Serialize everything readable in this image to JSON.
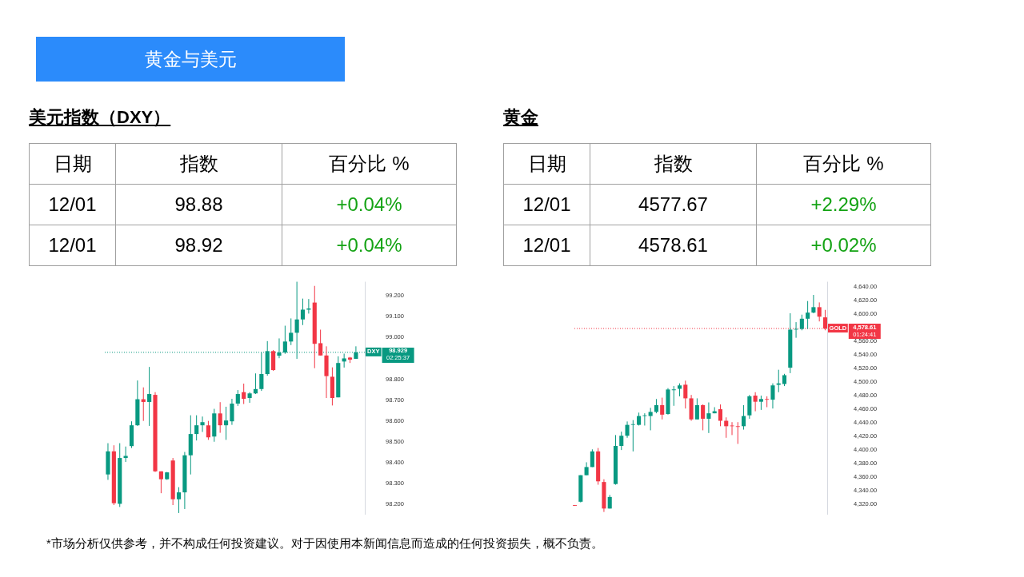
{
  "chart_data": [
    {
      "type": "other",
      "title": "黄金与美元",
      "color": "#2b8bfb",
      "annotations": [
        "*市场分析仅供参考，并不构成任何投资建议。对于因使用本新闻信息而造成的任何投资损失，概不负责。"
      ]
    },
    {
      "type": "other",
      "title": "美元指数（DXY）",
      "categories": [
        "日期",
        "指数",
        "百分比 %"
      ],
      "annotations": [
        "12/01",
        "98.88",
        "+0.04%",
        "12/01",
        "98.92",
        "+0.04%"
      ],
      "colors": [
        "#000000",
        "#000000",
        "#14a314",
        "#000000",
        "#000000",
        "#14a314"
      ]
    },
    {
      "type": "candlestick",
      "categories": [
        null,
        null,
        null,
        null,
        null,
        null,
        null,
        null,
        null,
        null,
        null,
        null,
        null,
        null,
        null,
        null,
        null,
        null,
        null,
        null,
        null,
        null,
        null,
        null,
        null,
        null,
        null,
        null,
        null,
        null,
        null,
        null,
        null,
        null,
        null,
        null,
        null,
        null,
        null,
        null,
        null,
        null,
        null
      ],
      "ohlc": [
        [
          98.343,
          98.493,
          98.317,
          98.454
        ],
        [
          98.454,
          98.483,
          98.196,
          98.205
        ],
        [
          98.202,
          98.493,
          98.187,
          98.422
        ],
        [
          98.422,
          98.477,
          98.403,
          98.432
        ],
        [
          98.479,
          98.598,
          98.47,
          98.579
        ],
        [
          98.579,
          98.794,
          98.576,
          98.704
        ],
        [
          98.704,
          98.761,
          98.6,
          98.691
        ],
        [
          98.691,
          98.859,
          98.576,
          98.729
        ],
        [
          98.725,
          98.738,
          98.355,
          98.358
        ],
        [
          98.358,
          98.358,
          98.253,
          98.32
        ],
        [
          98.32,
          98.355,
          98.317,
          98.353
        ],
        [
          98.41,
          98.422,
          98.196,
          98.224
        ],
        [
          98.224,
          98.282,
          98.158,
          98.257
        ],
        [
          98.257,
          98.451,
          98.177,
          98.435
        ],
        [
          98.435,
          98.627,
          98.343,
          98.537
        ],
        [
          98.537,
          98.627,
          98.506,
          98.579
        ],
        [
          98.579,
          98.621,
          98.547,
          98.594
        ],
        [
          98.579,
          98.6,
          98.509,
          98.521
        ],
        [
          98.525,
          98.658,
          98.5,
          98.636
        ],
        [
          98.636,
          98.69,
          98.543,
          98.579
        ],
        [
          98.579,
          98.668,
          98.509,
          98.602
        ],
        [
          98.598,
          98.706,
          98.581,
          98.683
        ],
        [
          98.683,
          98.748,
          98.672,
          98.729
        ],
        [
          98.738,
          98.779,
          98.681,
          98.706
        ],
        [
          98.71,
          98.738,
          98.687,
          98.732
        ],
        [
          98.732,
          98.828,
          98.729,
          98.753
        ],
        [
          98.753,
          98.929,
          98.744,
          98.825
        ],
        [
          98.825,
          98.983,
          98.817,
          98.935
        ],
        [
          98.935,
          98.94,
          98.84,
          98.844
        ],
        [
          98.913,
          98.996,
          98.901,
          98.928
        ],
        [
          98.928,
          99.057,
          98.922,
          98.981
        ],
        [
          98.981,
          99.092,
          98.964,
          99.023
        ],
        [
          99.023,
          99.268,
          98.898,
          99.087
        ],
        [
          99.087,
          99.187,
          99.06,
          99.134
        ],
        [
          99.134,
          99.185,
          99.115,
          99.14
        ],
        [
          99.168,
          99.248,
          98.853,
          98.97
        ],
        [
          98.973,
          99.038,
          98.914,
          98.914
        ],
        [
          98.914,
          98.958,
          98.71,
          98.815
        ],
        [
          98.812,
          98.857,
          98.674,
          98.71
        ],
        [
          98.713,
          98.91,
          98.713,
          98.878
        ],
        [
          98.885,
          98.923,
          98.856,
          98.9
        ],
        [
          98.904,
          98.907,
          98.878,
          98.894
        ],
        [
          98.898,
          98.958,
          98.898,
          98.929
        ]
      ],
      "colors": [
        "#089981",
        "#f23645",
        "#089981",
        "#089981",
        "#089981",
        "#089981",
        "#f23645",
        "#089981",
        "#f23645",
        "#f23645",
        "#089981",
        "#f23645",
        "#089981",
        "#089981",
        "#089981",
        "#089981",
        "#089981",
        "#f23645",
        "#089981",
        "#f23645",
        "#089981",
        "#089981",
        "#089981",
        "#f23645",
        "#089981",
        "#089981",
        "#089981",
        "#089981",
        "#f23645",
        "#089981",
        "#089981",
        "#089981",
        "#089981",
        "#089981",
        "#089981",
        "#f23645",
        "#f23645",
        "#f23645",
        "#f23645",
        "#089981",
        "#089981",
        "#f23645",
        "#089981"
      ],
      "ylim": [
        98.15,
        99.27
      ],
      "yticks": [
        {
          "value": 98.2,
          "label": "98.200"
        },
        {
          "value": 98.3,
          "label": "98.300"
        },
        {
          "value": 98.4,
          "label": "98.400"
        },
        {
          "value": 98.5,
          "label": "98.500"
        },
        {
          "value": 98.6,
          "label": "98.600"
        },
        {
          "value": 98.7,
          "label": "98.700"
        },
        {
          "value": 98.8,
          "label": "98.800"
        },
        {
          "value": 99.0,
          "label": "99.000"
        },
        {
          "value": 99.1,
          "label": "99.100"
        },
        {
          "value": 99.2,
          "label": "99.200"
        }
      ],
      "tick_labels": "y",
      "ref_lines": [
        {
          "axis": "y",
          "value": 98.929,
          "label": "DXY",
          "color": "#089981",
          "line_style": "dotted"
        }
      ],
      "annotations": [
        "98.929",
        "02:25:37"
      ]
    },
    {
      "type": "other",
      "title": "黄金",
      "categories": [
        "日期",
        "指数",
        "百分比 %"
      ],
      "annotations": [
        "12/01",
        "4577.67",
        "+2.29%",
        "12/01",
        "4578.61",
        "+0.02%"
      ],
      "colors": [
        "#000000",
        "#000000",
        "#14a314",
        "#000000",
        "#000000",
        "#14a314"
      ]
    },
    {
      "type": "candlestick",
      "categories": [
        null,
        null,
        null,
        null,
        null,
        null,
        null,
        null,
        null,
        null,
        null,
        null,
        null,
        null,
        null,
        null,
        null,
        null,
        null,
        null,
        null,
        null,
        null,
        null,
        null,
        null,
        null,
        null,
        null,
        null,
        null,
        null,
        null,
        null,
        null,
        null,
        null,
        null,
        null,
        null,
        null,
        null,
        null,
        null
      ],
      "ohlc": [
        [
          4319,
          4319,
          4318,
          4318
        ],
        [
          4324,
          4363,
          4323,
          4363
        ],
        [
          4363,
          4382,
          4363,
          4375
        ],
        [
          4375,
          4401,
          4375,
          4398
        ],
        [
          4398,
          4403,
          4349,
          4354
        ],
        [
          4353,
          4357,
          4309,
          4314
        ],
        [
          4314,
          4334,
          4314,
          4331
        ],
        [
          4350,
          4422,
          4349,
          4406
        ],
        [
          4406,
          4427,
          4400,
          4421
        ],
        [
          4421,
          4442,
          4418,
          4437
        ],
        [
          4437,
          4444,
          4398,
          4438
        ],
        [
          4437,
          4455,
          4436,
          4450
        ],
        [
          4450,
          4454,
          4436,
          4451
        ],
        [
          4450,
          4462,
          4429,
          4456
        ],
        [
          4456,
          4475,
          4454,
          4466
        ],
        [
          4466,
          4477,
          4445,
          4452
        ],
        [
          4453,
          4491,
          4452,
          4489
        ],
        [
          4488,
          4494,
          4465,
          4489
        ],
        [
          4490,
          4498,
          4479,
          4495
        ],
        [
          4496,
          4502,
          4461,
          4476
        ],
        [
          4476,
          4481,
          4443,
          4445
        ],
        [
          4445,
          4476,
          4445,
          4466
        ],
        [
          4466,
          4467,
          4429,
          4446
        ],
        [
          4446,
          4470,
          4425,
          4454
        ],
        [
          4454,
          4463,
          4454,
          4457
        ],
        [
          4460,
          4467,
          4435,
          4443
        ],
        [
          4443,
          4448,
          4418,
          4435
        ],
        [
          4436,
          4441,
          4422,
          4435
        ],
        [
          4435,
          4441,
          4409,
          4434
        ],
        [
          4435,
          4466,
          4430,
          4450
        ],
        [
          4451,
          4481,
          4446,
          4479
        ],
        [
          4480,
          4485,
          4457,
          4471
        ],
        [
          4471,
          4480,
          4459,
          4475
        ],
        [
          4475,
          4479,
          4463,
          4474
        ],
        [
          4474,
          4498,
          4461,
          4495
        ],
        [
          4496,
          4518,
          4485,
          4498
        ],
        [
          4497,
          4512,
          4494,
          4510
        ],
        [
          4521,
          4601,
          4513,
          4577
        ],
        [
          4577,
          4588,
          4565,
          4578
        ],
        [
          4578,
          4599,
          4576,
          4593
        ],
        [
          4593,
          4619,
          4578,
          4602
        ],
        [
          4602,
          4628,
          4601,
          4610
        ],
        [
          4610,
          4617,
          4589,
          4596
        ],
        [
          4595,
          4606,
          4576,
          4578.61
        ]
      ],
      "colors": [
        "#f23645",
        "#089981",
        "#089981",
        "#089981",
        "#f23645",
        "#f23645",
        "#089981",
        "#089981",
        "#089981",
        "#089981",
        "#089981",
        "#089981",
        "#089981",
        "#089981",
        "#089981",
        "#f23645",
        "#089981",
        "#089981",
        "#089981",
        "#f23645",
        "#f23645",
        "#089981",
        "#f23645",
        "#089981",
        "#089981",
        "#f23645",
        "#f23645",
        "#f23645",
        "#f23645",
        "#089981",
        "#089981",
        "#f23645",
        "#089981",
        "#f23645",
        "#089981",
        "#089981",
        "#089981",
        "#089981",
        "#089981",
        "#089981",
        "#089981",
        "#089981",
        "#f23645",
        "#f23645"
      ],
      "ylim": [
        4305,
        4648
      ],
      "yticks": [
        {
          "value": 4320,
          "label": "4,320.00"
        },
        {
          "value": 4340,
          "label": "4,340.00"
        },
        {
          "value": 4360,
          "label": "4,360.00"
        },
        {
          "value": 4380,
          "label": "4,380.00"
        },
        {
          "value": 4400,
          "label": "4,400.00"
        },
        {
          "value": 4420,
          "label": "4,420.00"
        },
        {
          "value": 4440,
          "label": "4,440.00"
        },
        {
          "value": 4460,
          "label": "4,460.00"
        },
        {
          "value": 4480,
          "label": "4,480.00"
        },
        {
          "value": 4500,
          "label": "4,500.00"
        },
        {
          "value": 4520,
          "label": "4,520.00"
        },
        {
          "value": 4540,
          "label": "4,540.00"
        },
        {
          "value": 4560,
          "label": "4,560.00"
        },
        {
          "value": 4600,
          "label": "4,600.00"
        },
        {
          "value": 4620,
          "label": "4,620.00"
        },
        {
          "value": 4640,
          "label": "4,640.00"
        }
      ],
      "tick_labels": "y",
      "ref_lines": [
        {
          "axis": "y",
          "value": 4578.61,
          "label": "GOLD",
          "color": "#f23645",
          "line_style": "dotted"
        }
      ],
      "annotations": [
        "4,578.61",
        "01:24:41"
      ]
    }
  ]
}
